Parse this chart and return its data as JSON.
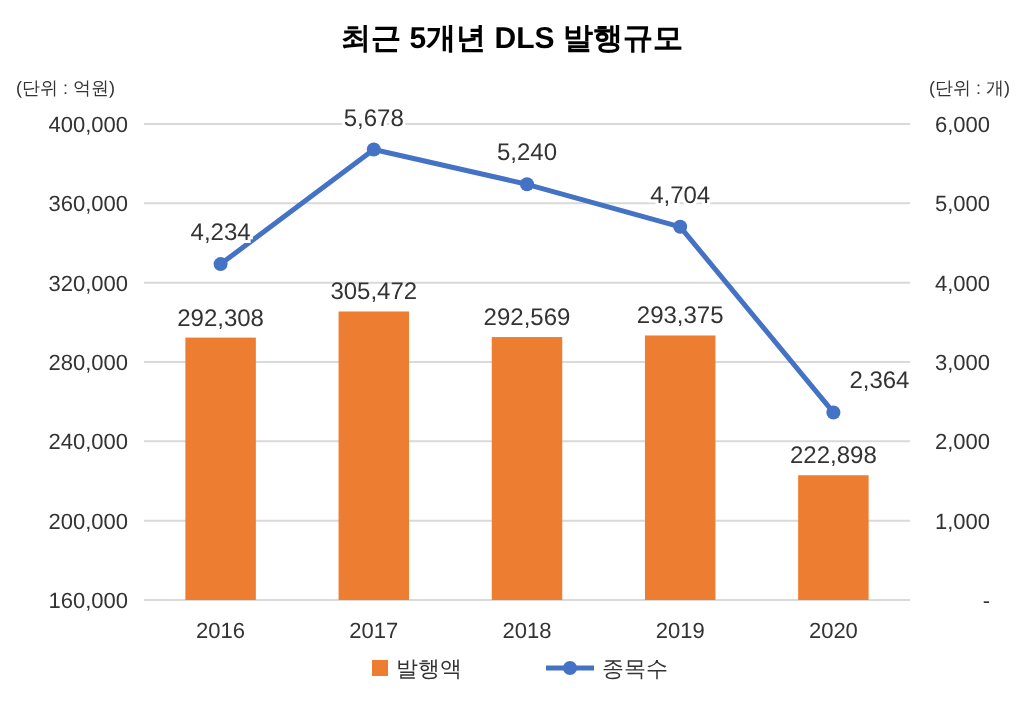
{
  "chart_data": {
    "type": "bar",
    "title": "최근 5개년 DLS 발행규모",
    "ylabel": "(단위 : 억원)",
    "y2label": "(단위 : 개)",
    "categories": [
      "2016",
      "2017",
      "2018",
      "2019",
      "2020"
    ],
    "series": [
      {
        "name": "발행액",
        "color": "#ed7d31",
        "values": [
          292308,
          305472,
          292569,
          293375,
          222898
        ],
        "value_labels": [
          "292,308",
          "305,472",
          "292,569",
          "293,375",
          "222,898"
        ]
      },
      {
        "name": "종목수",
        "type": "line",
        "axis": "y2",
        "color": "#4472c4",
        "marker": "circle",
        "values": [
          4234,
          5678,
          5240,
          4704,
          2364
        ],
        "value_labels": [
          "4,234",
          "5,678",
          "5,240",
          "4,704",
          "2,364"
        ]
      }
    ],
    "ylim": [
      160000,
      400000
    ],
    "yticks": [
      {
        "value": 160000,
        "label": "160,000"
      },
      {
        "value": 200000,
        "label": "200,000"
      },
      {
        "value": 240000,
        "label": "240,000"
      },
      {
        "value": 280000,
        "label": "280,000"
      },
      {
        "value": 320000,
        "label": "320,000"
      },
      {
        "value": 360000,
        "label": "360,000"
      },
      {
        "value": 400000,
        "label": "400,000"
      }
    ],
    "y2lim": [
      0,
      6000
    ],
    "y2ticks": [
      {
        "value": 0,
        "label": "-"
      },
      {
        "value": 1000,
        "label": "1,000"
      },
      {
        "value": 2000,
        "label": "2,000"
      },
      {
        "value": 3000,
        "label": "3,000"
      },
      {
        "value": 4000,
        "label": "4,000"
      },
      {
        "value": 5000,
        "label": "5,000"
      },
      {
        "value": 6000,
        "label": "6,000"
      }
    ],
    "grid": "y",
    "legend": "bottom"
  }
}
